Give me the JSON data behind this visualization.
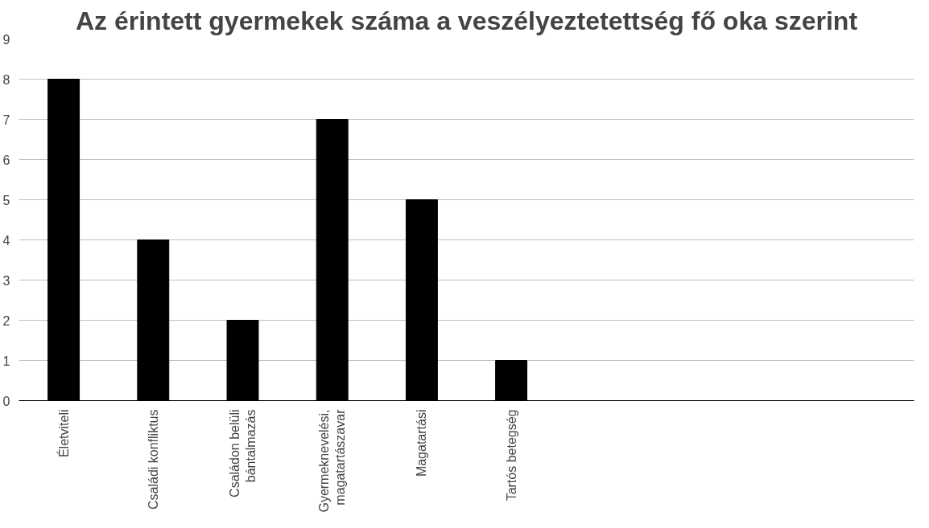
{
  "chart_data": {
    "type": "bar",
    "title": "Az érintett gyermekek száma a veszélyeztetettség fő oka szerint",
    "categories": [
      "Életviteli",
      "Családi konfliktus",
      "Családon belüli\nbántalmazás",
      "Gyermeknevelési,\nmagatartászavar",
      "Magatartási",
      "Tartós betegség",
      null,
      null,
      null,
      null
    ],
    "values": [
      8,
      4,
      2,
      7,
      5,
      1,
      null,
      null,
      null,
      null
    ],
    "color": "#000000",
    "ylim": [
      0,
      9
    ],
    "yticks": [
      0,
      1,
      2,
      3,
      4,
      5,
      6,
      7,
      8,
      9
    ],
    "grid": "y"
  }
}
